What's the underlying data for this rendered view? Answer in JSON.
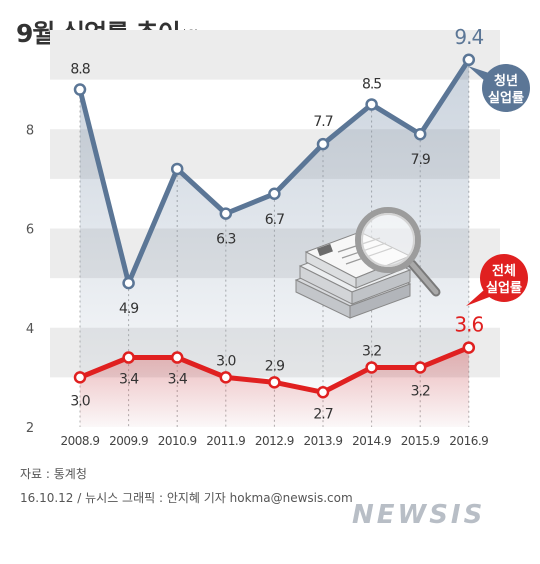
{
  "title": "9월 실업률 추이",
  "unit": "단위:%",
  "source": "자료 : 통계청",
  "credit": "16.10.12 / 뉴시스 그래픽 : 안지혜 기자 hokma@newsis.com",
  "logo": "NEWSIS",
  "colors": {
    "youth": "#5b7696",
    "overall": "#e02020",
    "band": "#ececec"
  },
  "chart_data": {
    "type": "line",
    "title": "9월 실업률 추이",
    "ylabel": "",
    "xlabel": "",
    "ylim": [
      2,
      10
    ],
    "yticks": [
      "2",
      "4",
      "6",
      "8"
    ],
    "categories": [
      "2008.9",
      "2009.9",
      "2010.9",
      "2011.9",
      "2012.9",
      "2013.9",
      "2014.9",
      "2015.9",
      "2016.9"
    ],
    "series": [
      {
        "name": "청년 실업률",
        "name_lines": [
          "청년",
          "실업률"
        ],
        "values": [
          8.8,
          4.9,
          7.2,
          6.3,
          6.7,
          7.7,
          8.5,
          7.9,
          9.4
        ],
        "labels": [
          "8.8",
          "4.9",
          "",
          "6.3",
          "6.7",
          "7.7",
          "8.5",
          "7.9",
          "9.4"
        ]
      },
      {
        "name": "전체 실업률",
        "name_lines": [
          "전체",
          "실업률"
        ],
        "values": [
          3.0,
          3.4,
          3.4,
          3.0,
          2.9,
          2.7,
          3.2,
          3.2,
          3.6
        ],
        "labels": [
          "3.0",
          "3.4",
          "3.4",
          "3.0",
          "2.9",
          "2.7",
          "3.2",
          "3.2",
          "3.6"
        ]
      }
    ]
  }
}
